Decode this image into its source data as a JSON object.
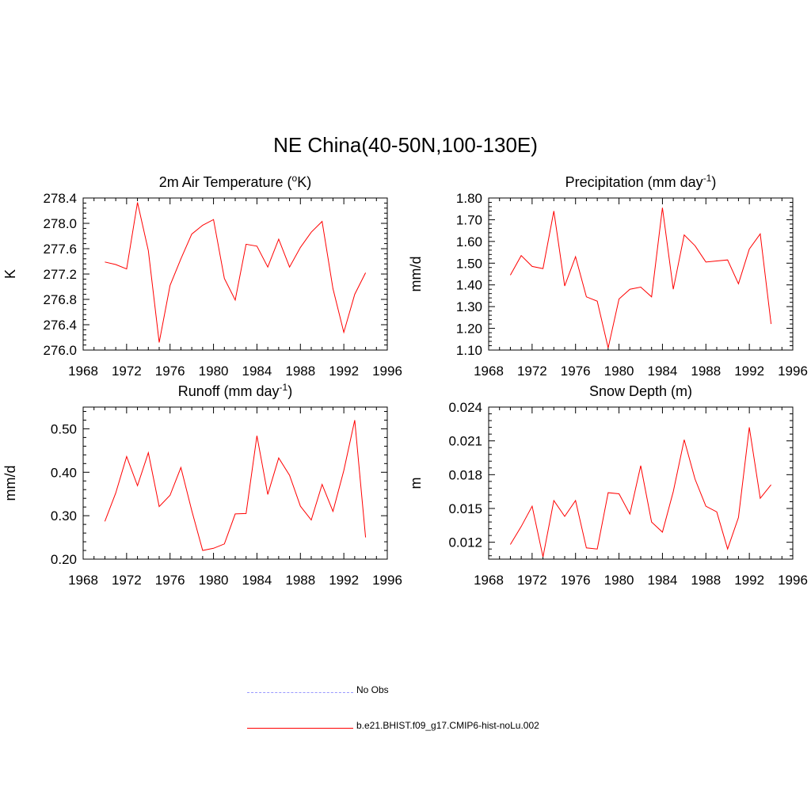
{
  "title": "NE China(40-50N,100-130E)",
  "colors": {
    "model": "#ff0000",
    "obs": "#9999ff"
  },
  "legend": {
    "items": [
      {
        "label": "No Obs",
        "style": "dashed",
        "color": "#9999ff"
      },
      {
        "label": "b.e21.BHIST.f09_g17.CMIP6-hist-noLu.002",
        "style": "solid",
        "color": "#ff0000"
      }
    ]
  },
  "chart_data": [
    {
      "type": "line",
      "title": "2m Air Temperature (",
      "title_sup": "o",
      "title_tail": "K)",
      "ylabel": "K",
      "xlim": [
        1968,
        1996
      ],
      "ylim": [
        276.0,
        278.4
      ],
      "xticks": [
        "1968",
        "1972",
        "1976",
        "1980",
        "1984",
        "1988",
        "1992",
        "1996"
      ],
      "yticks": [
        "276.0",
        "276.4",
        "276.8",
        "277.2",
        "277.6",
        "278.0",
        "278.4"
      ],
      "series": [
        {
          "color": "#ff0000",
          "x": [
            1970,
            1971,
            1972,
            1973,
            1974,
            1975,
            1976,
            1977,
            1978,
            1979,
            1980,
            1981,
            1982,
            1983,
            1984,
            1985,
            1986,
            1987,
            1988,
            1989,
            1990,
            1991,
            1992,
            1993,
            1994
          ],
          "y": [
            277.39,
            277.35,
            277.28,
            278.33,
            277.57,
            276.12,
            277.02,
            277.44,
            277.83,
            277.97,
            278.06,
            277.13,
            276.79,
            277.67,
            277.64,
            277.31,
            277.75,
            277.31,
            277.62,
            277.86,
            278.03,
            276.97,
            276.28,
            276.88,
            277.22
          ]
        }
      ]
    },
    {
      "type": "line",
      "title": "Precipitation (mm day",
      "title_sup": "-1",
      "title_tail": ")",
      "ylabel": "mm/d",
      "xlim": [
        1968,
        1996
      ],
      "ylim": [
        1.1,
        1.8
      ],
      "xticks": [
        "1968",
        "1972",
        "1976",
        "1980",
        "1984",
        "1988",
        "1992",
        "1996"
      ],
      "yticks": [
        "1.10",
        "1.20",
        "1.30",
        "1.40",
        "1.50",
        "1.60",
        "1.70",
        "1.80"
      ],
      "series": [
        {
          "color": "#ff0000",
          "x": [
            1970,
            1971,
            1972,
            1973,
            1974,
            1975,
            1976,
            1977,
            1978,
            1979,
            1980,
            1981,
            1982,
            1983,
            1984,
            1985,
            1986,
            1987,
            1988,
            1989,
            1990,
            1991,
            1992,
            1993,
            1994
          ],
          "y": [
            1.445,
            1.535,
            1.485,
            1.475,
            1.74,
            1.395,
            1.53,
            1.345,
            1.325,
            1.11,
            1.335,
            1.38,
            1.39,
            1.345,
            1.755,
            1.38,
            1.63,
            1.58,
            1.505,
            1.51,
            1.515,
            1.405,
            1.565,
            1.635,
            1.22
          ]
        }
      ]
    },
    {
      "type": "line",
      "title": "Runoff (mm day",
      "title_sup": "-1",
      "title_tail": ")",
      "ylabel": "mm/d",
      "xlim": [
        1968,
        1996
      ],
      "ylim": [
        0.2,
        0.55
      ],
      "xticks": [
        "1968",
        "1972",
        "1976",
        "1980",
        "1984",
        "1988",
        "1992",
        "1996"
      ],
      "yticks": [
        "0.20",
        "0.30",
        "0.40",
        "0.50"
      ],
      "ytick_values": [
        0.2,
        0.3,
        0.4,
        0.5
      ],
      "series": [
        {
          "color": "#ff0000",
          "x": [
            1970,
            1971,
            1972,
            1973,
            1974,
            1975,
            1976,
            1977,
            1978,
            1979,
            1980,
            1981,
            1982,
            1983,
            1984,
            1985,
            1986,
            1987,
            1988,
            1989,
            1990,
            1991,
            1992,
            1993,
            1994
          ],
          "y": [
            0.287,
            0.352,
            0.436,
            0.369,
            0.445,
            0.321,
            0.347,
            0.411,
            0.312,
            0.22,
            0.225,
            0.235,
            0.304,
            0.305,
            0.484,
            0.349,
            0.433,
            0.393,
            0.322,
            0.29,
            0.372,
            0.31,
            0.404,
            0.52,
            0.25
          ]
        }
      ]
    },
    {
      "type": "line",
      "title": "Snow Depth (m)",
      "title_sup": "",
      "title_tail": "",
      "ylabel": "m",
      "xlim": [
        1968,
        1996
      ],
      "ylim": [
        0.0105,
        0.024
      ],
      "xticks": [
        "1968",
        "1972",
        "1976",
        "1980",
        "1984",
        "1988",
        "1992",
        "1996"
      ],
      "yticks": [
        "0.012",
        "0.015",
        "0.018",
        "0.021",
        "0.024"
      ],
      "ytick_values": [
        0.012,
        0.015,
        0.018,
        0.021,
        0.024
      ],
      "series": [
        {
          "color": "#ff0000",
          "x": [
            1970,
            1971,
            1972,
            1973,
            1974,
            1975,
            1976,
            1977,
            1978,
            1979,
            1980,
            1981,
            1982,
            1983,
            1984,
            1985,
            1986,
            1987,
            1988,
            1989,
            1990,
            1991,
            1992,
            1993,
            1994
          ],
          "y": [
            0.0118,
            0.0134,
            0.0152,
            0.0107,
            0.0157,
            0.0143,
            0.0157,
            0.0115,
            0.0114,
            0.0164,
            0.0163,
            0.0145,
            0.0188,
            0.0138,
            0.0129,
            0.0165,
            0.0211,
            0.0176,
            0.0152,
            0.0147,
            0.0114,
            0.0142,
            0.0222,
            0.0159,
            0.0171
          ]
        }
      ]
    }
  ]
}
